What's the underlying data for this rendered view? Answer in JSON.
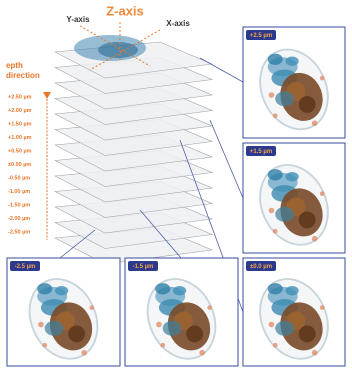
{
  "axes": {
    "z": "Z-axis",
    "y": "Y-axis",
    "x": "X-axis"
  },
  "depth": {
    "title": [
      "epth",
      "direction"
    ],
    "labels": [
      "+2.50 µm",
      "+2.00 µm",
      "+1.50 µm",
      "+1.00 µm",
      "+0.50 µm",
      "±0.00 µm",
      "-0.50 µm",
      "-1.00 µm",
      "-1.50 µm",
      "-2.00 µm",
      "-2.50 µm"
    ]
  },
  "panels": [
    "+2.5 µm",
    "+1.5 µm",
    "-2.5 µm",
    "-1.5 µm",
    "±0.0 µm"
  ]
}
